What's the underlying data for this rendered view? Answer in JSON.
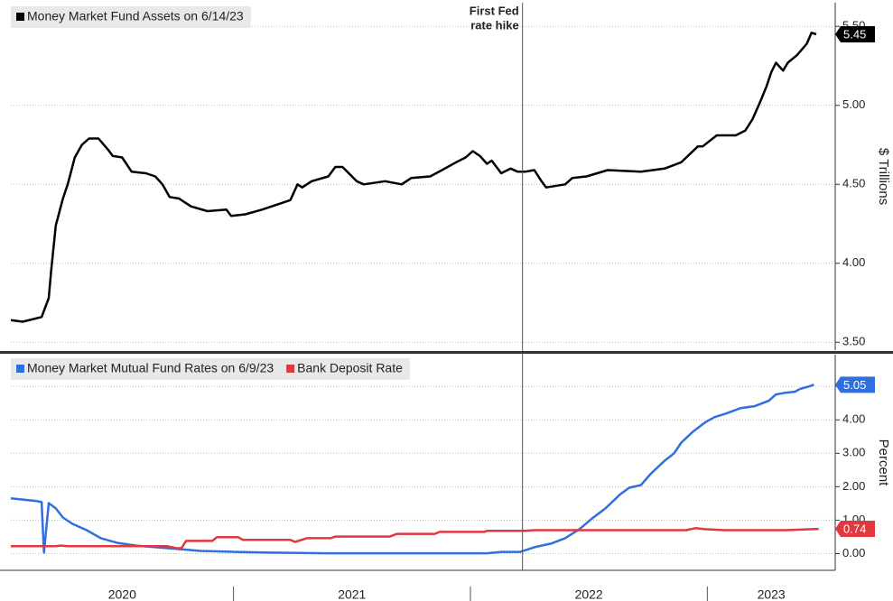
{
  "chart_data": [
    {
      "type": "line",
      "annotations": [
        {
          "lines": [
            "First Fed",
            "rate hike"
          ],
          "x": 2022.22
        }
      ],
      "ylabel": "$ Trillions",
      "xlim": [
        2020.06,
        2023.54
      ],
      "ylim": [
        3.45,
        5.65
      ],
      "yticks": [
        {
          "value": 3.5,
          "label": "3.50"
        },
        {
          "value": 4,
          "label": "4.00"
        },
        {
          "value": 4.5,
          "label": "4.50"
        },
        {
          "value": 5,
          "label": "5.00"
        },
        {
          "value": 5.5,
          "label": "5.50"
        }
      ],
      "grid": true,
      "series": [
        {
          "name": "Money Market Fund Assets on 6/14/23",
          "color": "#000000",
          "last_label": 5.45,
          "x": [
            2020.06,
            2020.11,
            2020.19,
            2020.22,
            2020.23,
            2020.25,
            2020.28,
            2020.3,
            2020.33,
            2020.36,
            2020.39,
            2020.43,
            2020.47,
            2020.49,
            2020.53,
            2020.57,
            2020.63,
            2020.67,
            2020.7,
            2020.73,
            2020.77,
            2020.82,
            2020.89,
            2020.97,
            2020.99,
            2021.05,
            2021.12,
            2021.2,
            2021.24,
            2021.27,
            2021.29,
            2021.33,
            2021.4,
            2021.43,
            2021.46,
            2021.52,
            2021.55,
            2021.64,
            2021.71,
            2021.75,
            2021.83,
            2021.88,
            2021.94,
            2021.98,
            2022.01,
            2022.04,
            2022.07,
            2022.09,
            2022.13,
            2022.17,
            2022.2,
            2022.23,
            2022.27,
            2022.3,
            2022.32,
            2022.4,
            2022.43,
            2022.49,
            2022.58,
            2022.72,
            2022.82,
            2022.89,
            2022.96,
            2022.98,
            2023.04,
            2023.12,
            2023.16,
            2023.19,
            2023.22,
            2023.25,
            2023.27,
            2023.29,
            2023.32,
            2023.34,
            2023.38,
            2023.42,
            2023.44,
            2023.46
          ],
          "values": [
            3.64,
            3.63,
            3.66,
            3.78,
            3.95,
            4.24,
            4.41,
            4.5,
            4.67,
            4.75,
            4.79,
            4.79,
            4.72,
            4.68,
            4.67,
            4.58,
            4.57,
            4.55,
            4.5,
            4.42,
            4.41,
            4.36,
            4.33,
            4.34,
            4.3,
            4.31,
            4.34,
            4.38,
            4.4,
            4.5,
            4.48,
            4.52,
            4.55,
            4.61,
            4.61,
            4.52,
            4.5,
            4.52,
            4.5,
            4.54,
            4.55,
            4.59,
            4.64,
            4.67,
            4.71,
            4.68,
            4.63,
            4.65,
            4.57,
            4.6,
            4.58,
            4.58,
            4.59,
            4.52,
            4.48,
            4.5,
            4.54,
            4.55,
            4.59,
            4.58,
            4.6,
            4.64,
            4.74,
            4.74,
            4.81,
            4.81,
            4.84,
            4.91,
            5.01,
            5.12,
            5.21,
            5.27,
            5.22,
            5.27,
            5.32,
            5.39,
            5.46,
            5.45
          ]
        }
      ]
    },
    {
      "type": "line",
      "ylabel": "Percent",
      "xlim": [
        2020.06,
        2023.54
      ],
      "ylim": [
        -0.5,
        5.95
      ],
      "yticks": [
        {
          "value": 0,
          "label": "0.00"
        },
        {
          "value": 1,
          "label": "1.00"
        },
        {
          "value": 2,
          "label": "2.00"
        },
        {
          "value": 3,
          "label": "3.00"
        },
        {
          "value": 4,
          "label": "4.00"
        },
        {
          "value": 5,
          "label": "5.00"
        }
      ],
      "xticks": [
        2020,
        2021,
        2022,
        2023
      ],
      "grid": true,
      "series": [
        {
          "name": "Money Market Mutual Fund Rates on 6/9/23",
          "color": "#2f6fe0",
          "last_label": 5.05,
          "x": [
            2020.06,
            2020.17,
            2020.19,
            2020.2,
            2020.22,
            2020.25,
            2020.28,
            2020.32,
            2020.38,
            2020.44,
            2020.51,
            2020.59,
            2020.67,
            2020.76,
            2020.86,
            2021.01,
            2021.16,
            2021.39,
            2022.07,
            2022.13,
            2022.21,
            2022.27,
            2022.34,
            2022.4,
            2022.46,
            2022.51,
            2022.57,
            2022.63,
            2022.67,
            2022.72,
            2022.76,
            2022.82,
            2022.86,
            2022.89,
            2022.94,
            2022.99,
            2023.03,
            2023.08,
            2023.14,
            2023.2,
            2023.26,
            2023.29,
            2023.33,
            2023.37,
            2023.39,
            2023.43,
            2023.45
          ],
          "values": [
            1.65,
            1.57,
            1.54,
            0.03,
            1.51,
            1.35,
            1.08,
            0.89,
            0.7,
            0.46,
            0.32,
            0.24,
            0.19,
            0.14,
            0.08,
            0.05,
            0.03,
            0.01,
            0.01,
            0.05,
            0.05,
            0.19,
            0.3,
            0.46,
            0.73,
            1.03,
            1.35,
            1.76,
            1.97,
            2.05,
            2.38,
            2.78,
            3.0,
            3.32,
            3.65,
            3.92,
            4.08,
            4.19,
            4.35,
            4.41,
            4.57,
            4.76,
            4.81,
            4.84,
            4.92,
            5.0,
            5.05
          ]
        },
        {
          "name": "Bank Deposit Rate",
          "color": "#e0383e",
          "last_label": 0.74,
          "x": [
            2020.06,
            2020.25,
            2020.27,
            2020.3,
            2020.72,
            2020.76,
            2020.78,
            2020.8,
            2020.91,
            2020.93,
            2021.02,
            2021.04,
            2021.24,
            2021.26,
            2021.31,
            2021.41,
            2021.43,
            2021.66,
            2021.69,
            2021.85,
            2021.87,
            2022.06,
            2022.07,
            2022.23,
            2022.27,
            2022.68,
            2022.91,
            2022.95,
            2022.99,
            2023.07,
            2023.33,
            2023.47
          ],
          "values": [
            0.22,
            0.22,
            0.24,
            0.22,
            0.22,
            0.16,
            0.16,
            0.38,
            0.38,
            0.49,
            0.49,
            0.41,
            0.41,
            0.35,
            0.46,
            0.46,
            0.51,
            0.51,
            0.59,
            0.59,
            0.65,
            0.65,
            0.68,
            0.68,
            0.7,
            0.7,
            0.7,
            0.76,
            0.73,
            0.7,
            0.7,
            0.74
          ]
        }
      ]
    }
  ]
}
